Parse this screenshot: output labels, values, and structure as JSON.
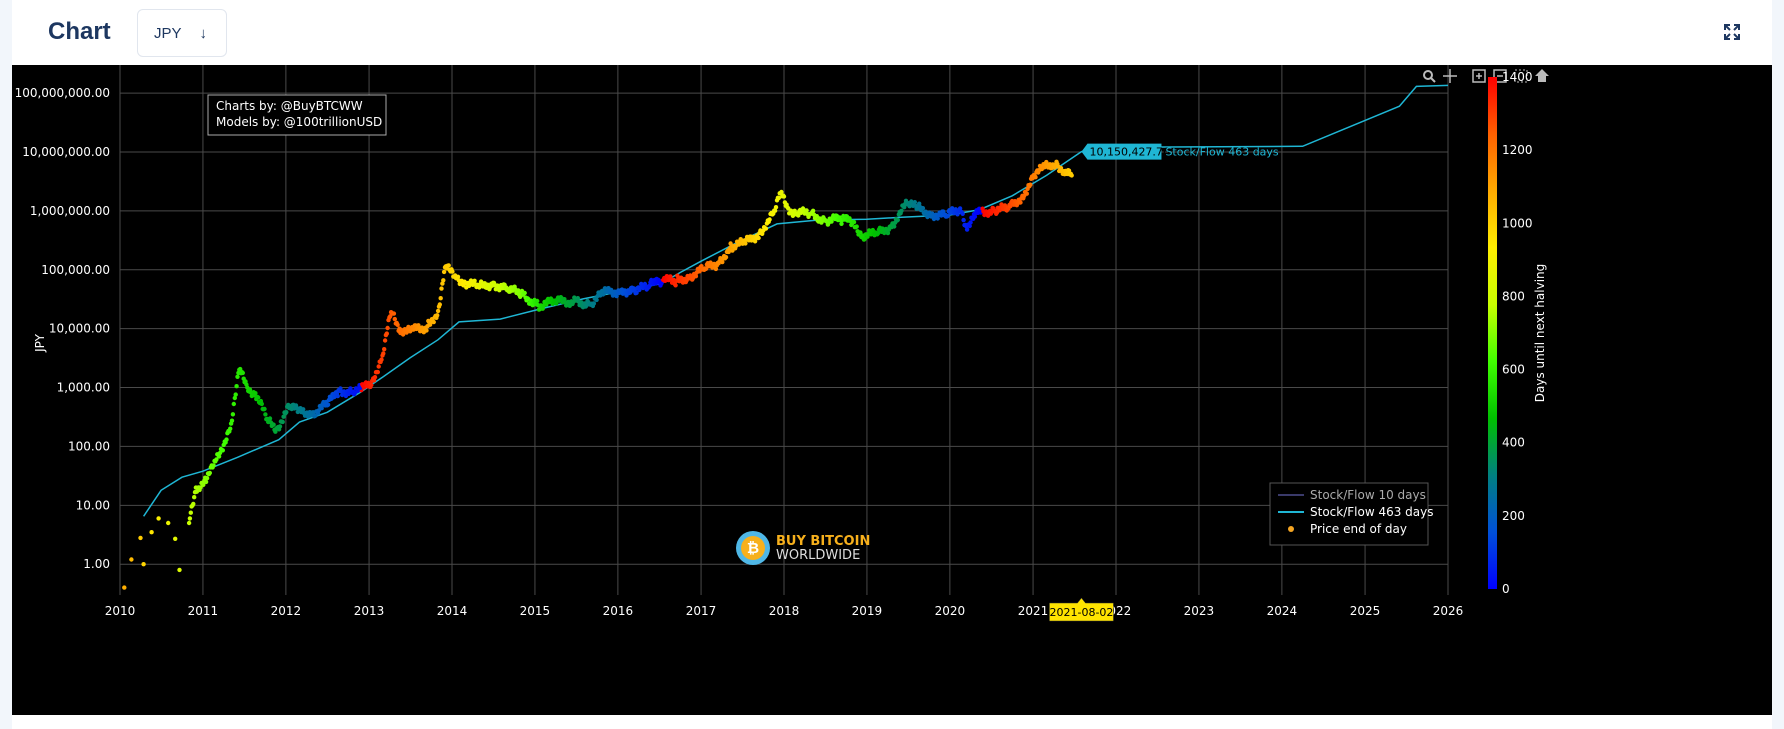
{
  "header": {
    "title": "Chart",
    "currency_value": "JPY",
    "currency_arrow": "↓",
    "expand_icon": "fullscreen-expand-icon"
  },
  "toolbar": {
    "icons": [
      "zoom-icon",
      "pan-icon",
      "zoom-in-icon",
      "zoom-out-icon",
      "autoscale-icon",
      "reset-axes-icon"
    ]
  },
  "credits": {
    "line1": "Charts by: @BuyBTCWW",
    "line2": "Models by: @100trillionUSD"
  },
  "logo": {
    "line1": "BUY BITCOIN",
    "line2": "WORLDWIDE"
  },
  "hover": {
    "value_label": "10,150,427.76",
    "series_label": "Stock/Flow 463 days",
    "date_label": "2021-08-02",
    "date_color": "#ffe400"
  },
  "chart_data": {
    "type": "scatter",
    "title": "",
    "xlabel": "",
    "ylabel": "JPY",
    "yscale": "log",
    "ylim": [
      0.3,
      300000000
    ],
    "xlim": [
      "2010-01-01",
      "2026-01-01"
    ],
    "x_tick_labels": [
      "2010",
      "2011",
      "2012",
      "2013",
      "2014",
      "2015",
      "2016",
      "2017",
      "2018",
      "2019",
      "2020",
      "2021",
      "2022",
      "2023",
      "2024",
      "2025",
      "2026"
    ],
    "y_tick_labels": [
      "1.00",
      "10.00",
      "100.00",
      "1,000.00",
      "10,000.00",
      "100,000.00",
      "1,000,000.00",
      "10,000,000.00",
      "100,000,000.00"
    ],
    "grid": true,
    "legend": {
      "placement": "bottom-right",
      "entries": [
        {
          "name": "Stock/Flow 10 days",
          "color": "#3a3a6a",
          "kind": "line"
        },
        {
          "name": "Stock/Flow 463 days",
          "color": "#1fb6d4",
          "kind": "line"
        },
        {
          "name": "Price end of day",
          "color": "#f5a623",
          "kind": "marker"
        }
      ]
    },
    "colorbar": {
      "title": "Days until next halving",
      "range": [
        0,
        1400
      ],
      "tick_labels": [
        "0",
        "200",
        "400",
        "600",
        "800",
        "1000",
        "1200",
        "1400"
      ],
      "colors": [
        "#0000ff",
        "#0050d8",
        "#008080",
        "#00c000",
        "#40ff00",
        "#c8ff00",
        "#ffee00",
        "#ffaa00",
        "#ff6000",
        "#ff0000"
      ]
    },
    "series": [
      {
        "name": "Stock/Flow 463 days",
        "color": "#1fb6d4",
        "points": [
          [
            "2010-04-15",
            6.5
          ],
          [
            "2010-07-01",
            18
          ],
          [
            "2010-10-01",
            30
          ],
          [
            "2011-01-01",
            38
          ],
          [
            "2011-06-01",
            65
          ],
          [
            "2011-12-01",
            130
          ],
          [
            "2012-03-01",
            260
          ],
          [
            "2012-07-01",
            380
          ],
          [
            "2012-11-28",
            850
          ],
          [
            "2013-03-01",
            1500
          ],
          [
            "2013-07-01",
            3200
          ],
          [
            "2013-11-01",
            6500
          ],
          [
            "2014-02-01",
            13000
          ],
          [
            "2014-08-01",
            14500
          ],
          [
            "2015-02-01",
            22000
          ],
          [
            "2015-08-01",
            32000
          ],
          [
            "2016-01-01",
            42000
          ],
          [
            "2016-07-09",
            58000
          ],
          [
            "2016-10-01",
            90000
          ],
          [
            "2017-01-01",
            140000
          ],
          [
            "2017-06-01",
            280000
          ],
          [
            "2017-12-01",
            600000
          ],
          [
            "2018-06-01",
            700000
          ],
          [
            "2019-01-01",
            720000
          ],
          [
            "2019-06-01",
            780000
          ],
          [
            "2020-01-01",
            850000
          ],
          [
            "2020-05-11",
            1050000
          ],
          [
            "2020-10-01",
            1800000
          ],
          [
            "2021-03-01",
            4000000
          ],
          [
            "2021-08-02",
            10150427.76
          ],
          [
            "2022-01-01",
            12000000
          ],
          [
            "2024-04-01",
            12500000
          ],
          [
            "2025-06-01",
            60000000
          ],
          [
            "2025-08-15",
            130000000
          ],
          [
            "2026-01-01",
            135000000
          ]
        ]
      },
      {
        "name": "Price end of day",
        "color_by": "days until next halving",
        "points": [
          [
            "2010-01-20",
            0.4,
            1080
          ],
          [
            "2010-02-20",
            1.2,
            1050
          ],
          [
            "2010-04-01",
            2.8,
            1010
          ],
          [
            "2010-04-15",
            1.0,
            990
          ],
          [
            "2010-05-20",
            3.5,
            950
          ],
          [
            "2010-06-20",
            6,
            920
          ],
          [
            "2010-08-01",
            5,
            880
          ],
          [
            "2010-09-01",
            2.7,
            850
          ],
          [
            "2010-09-20",
            0.8,
            830
          ],
          [
            "2010-11-01",
            5,
            780
          ],
          [
            "2010-12-01",
            20,
            750
          ],
          [
            "2011-01-15",
            25,
            700
          ],
          [
            "2011-03-01",
            60,
            650
          ],
          [
            "2011-05-01",
            200,
            600
          ],
          [
            "2011-06-10",
            2000,
            560
          ],
          [
            "2011-07-15",
            1000,
            520
          ],
          [
            "2011-08-20",
            800,
            490
          ],
          [
            "2011-10-15",
            260,
            430
          ],
          [
            "2011-11-20",
            200,
            400
          ],
          [
            "2012-01-15",
            450,
            340
          ],
          [
            "2012-03-01",
            400,
            300
          ],
          [
            "2012-05-01",
            380,
            240
          ],
          [
            "2012-07-01",
            500,
            170
          ],
          [
            "2012-08-20",
            900,
            110
          ],
          [
            "2012-10-15",
            850,
            50
          ],
          [
            "2012-11-28",
            900,
            1400
          ],
          [
            "2013-01-15",
            1300,
            1340
          ],
          [
            "2013-03-01",
            3500,
            1300
          ],
          [
            "2013-04-08",
            19000,
            1260
          ],
          [
            "2013-05-15",
            10000,
            1220
          ],
          [
            "2013-07-01",
            9000,
            1180
          ],
          [
            "2013-09-15",
            11000,
            1100
          ],
          [
            "2013-11-01",
            20000,
            1050
          ],
          [
            "2013-12-01",
            110000,
            1020
          ],
          [
            "2014-01-15",
            80000,
            980
          ],
          [
            "2014-03-01",
            60000,
            930
          ],
          [
            "2014-05-01",
            50000,
            870
          ],
          [
            "2014-07-01",
            60000,
            810
          ],
          [
            "2014-09-01",
            45000,
            750
          ],
          [
            "2014-11-01",
            40000,
            690
          ],
          [
            "2015-01-15",
            25000,
            540
          ],
          [
            "2015-04-01",
            28000,
            460
          ],
          [
            "2015-07-01",
            30000,
            370
          ],
          [
            "2015-09-01",
            26000,
            310
          ],
          [
            "2015-11-01",
            40000,
            250
          ],
          [
            "2016-01-15",
            45000,
            170
          ],
          [
            "2016-03-15",
            45000,
            110
          ],
          [
            "2016-05-15",
            50000,
            55
          ],
          [
            "2016-06-20",
            70000,
            20
          ],
          [
            "2016-07-15",
            65000,
            1400
          ],
          [
            "2016-09-15",
            65000,
            1330
          ],
          [
            "2016-11-15",
            80000,
            1280
          ],
          [
            "2017-01-15",
            100000,
            1220
          ],
          [
            "2017-03-15",
            130000,
            1160
          ],
          [
            "2017-05-15",
            250000,
            1100
          ],
          [
            "2017-07-15",
            280000,
            1030
          ],
          [
            "2017-09-15",
            420000,
            970
          ],
          [
            "2017-11-15",
            900000,
            910
          ],
          [
            "2017-12-17",
            2000000,
            880
          ],
          [
            "2018-01-20",
            1100000,
            840
          ],
          [
            "2018-03-01",
            900000,
            800
          ],
          [
            "2018-05-01",
            900000,
            740
          ],
          [
            "2018-07-01",
            700000,
            680
          ],
          [
            "2018-09-15",
            700000,
            600
          ],
          [
            "2018-11-01",
            650000,
            560
          ],
          [
            "2018-12-15",
            380000,
            510
          ],
          [
            "2019-02-15",
            400000,
            460
          ],
          [
            "2019-04-15",
            550000,
            400
          ],
          [
            "2019-06-26",
            1300000,
            330
          ],
          [
            "2019-08-15",
            1100000,
            280
          ],
          [
            "2019-10-15",
            900000,
            210
          ],
          [
            "2019-12-15",
            800000,
            150
          ],
          [
            "2020-02-15",
            1100000,
            85
          ],
          [
            "2020-03-13",
            550000,
            60
          ],
          [
            "2020-04-20",
            800000,
            20
          ],
          [
            "2020-05-20",
            1000000,
            1400
          ],
          [
            "2020-07-15",
            1000000,
            1350
          ],
          [
            "2020-09-15",
            1100000,
            1290
          ],
          [
            "2020-11-15",
            1800000,
            1230
          ],
          [
            "2021-01-08",
            4000000,
            1180
          ],
          [
            "2021-02-20",
            5500000,
            1130
          ],
          [
            "2021-04-14",
            6800000,
            1080
          ],
          [
            "2021-05-20",
            4200000,
            1040
          ],
          [
            "2021-06-20",
            4000000,
            1010
          ]
        ]
      }
    ]
  }
}
